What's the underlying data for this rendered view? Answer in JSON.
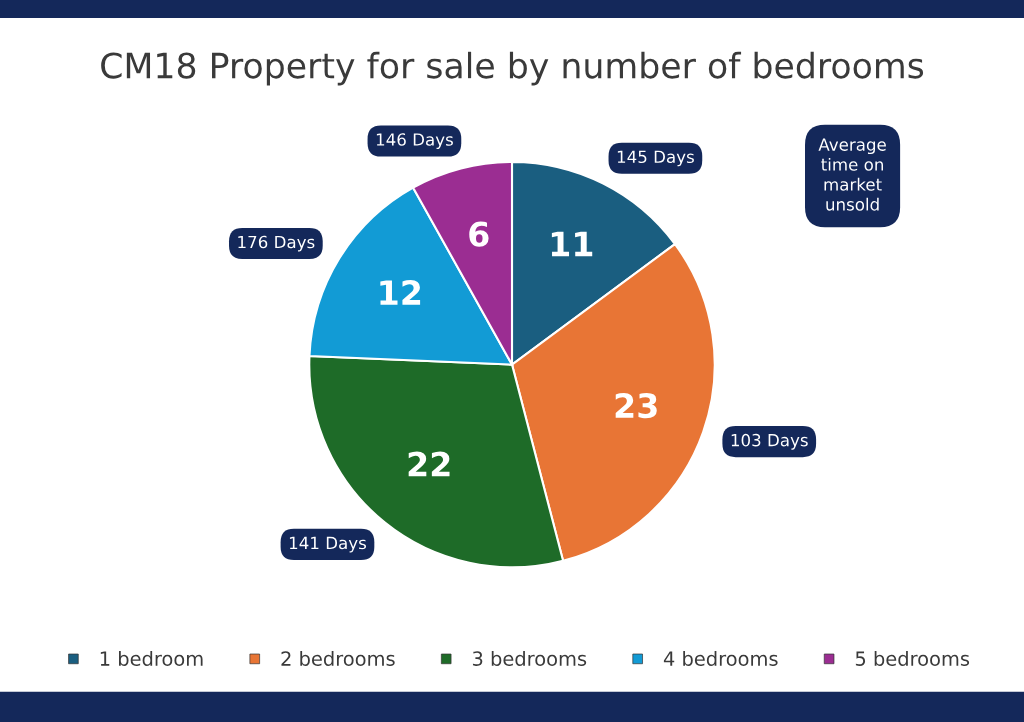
{
  "chart_data": {
    "type": "pie",
    "title": "CM18 Property for sale by number of bedrooms",
    "categories": [
      "1 bedroom",
      "2 bedrooms",
      "3 bedrooms",
      "4 bedrooms",
      "5 bedrooms"
    ],
    "values": [
      11,
      23,
      22,
      12,
      6
    ],
    "colors": [
      "#1a5e80",
      "#e87535",
      "#1e6b28",
      "#129bd5",
      "#9b2d92"
    ],
    "data_labels": true,
    "legend": "bottom",
    "annotations": [
      "145 Days",
      "103 Days",
      "141 Days",
      "176 Days",
      "146 Days",
      "Average\ntime on\nmarket\nunsold"
    ]
  }
}
